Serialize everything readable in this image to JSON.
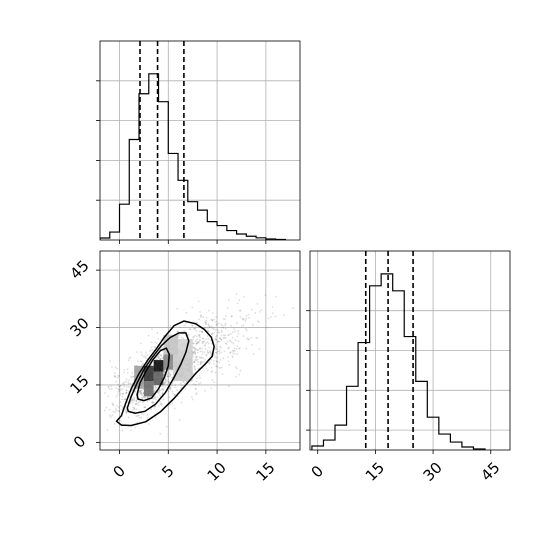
{
  "chart_data": {
    "type": "corner",
    "grid": true,
    "parameters": [
      "x",
      "y"
    ],
    "panels": [
      {
        "id": "hist_x",
        "type": "histogram",
        "xlim": [
          -2,
          18.5
        ],
        "ylim": [
          0,
          2000
        ],
        "bin_edges": [
          -2,
          -1,
          0,
          1,
          2,
          3,
          4,
          5,
          6,
          7,
          8,
          9,
          10,
          11,
          12,
          13,
          14,
          15,
          16,
          17
        ],
        "counts": [
          20,
          80,
          360,
          1010,
          1470,
          1670,
          1390,
          870,
          600,
          385,
          300,
          185,
          145,
          95,
          60,
          38,
          22,
          10,
          5
        ],
        "quantiles": [
          2.1,
          3.9,
          6.6
        ],
        "x_ticks": [
          0,
          5,
          10,
          15
        ],
        "y_ticks": [
          400,
          800,
          1200,
          1600
        ],
        "show_x_tick_labels": false,
        "show_y_tick_labels": false
      },
      {
        "id": "joint_xy",
        "type": "2d-density",
        "xlim": [
          -2,
          18.5
        ],
        "ylim": [
          -2,
          50
        ],
        "x_ticks": [
          0,
          5,
          10,
          15
        ],
        "x_tick_labels": [
          "0",
          "5",
          "10",
          "15"
        ],
        "y_ticks": [
          0,
          15,
          30,
          45
        ],
        "y_tick_labels": [
          "0",
          "15",
          "30",
          "45"
        ],
        "density_cells": [
          {
            "x": 3.5,
            "y": 18.5,
            "w": 1,
            "h": 3,
            "shade": 0.0
          },
          {
            "x": 2.5,
            "y": 16,
            "w": 1,
            "h": 4,
            "shade": 0.15
          },
          {
            "x": 3.5,
            "y": 15,
            "w": 1,
            "h": 3.5,
            "shade": 0.35
          },
          {
            "x": 2.5,
            "y": 12,
            "w": 1,
            "h": 4,
            "shade": 0.4
          },
          {
            "x": 4.5,
            "y": 19,
            "w": 1,
            "h": 4,
            "shade": 0.5
          },
          {
            "x": 1.5,
            "y": 14,
            "w": 1,
            "h": 6,
            "shade": 0.6
          },
          {
            "x": 4.5,
            "y": 23,
            "w": 1.5,
            "h": 5,
            "shade": 0.75
          },
          {
            "x": 5.5,
            "y": 16,
            "w": 2,
            "h": 8,
            "shade": 0.78
          },
          {
            "x": 6,
            "y": 22,
            "w": 1.5,
            "h": 5,
            "shade": 0.82
          }
        ],
        "contours": [
          [
            [
              -0.3,
              5.5
            ],
            [
              0.2,
              7
            ],
            [
              0.6,
              10
            ],
            [
              1.2,
              14
            ],
            [
              2,
              18
            ],
            [
              2.9,
              21.5
            ],
            [
              3.8,
              24.5
            ],
            [
              4.6,
              27.5
            ],
            [
              5.6,
              30.5
            ],
            [
              6.6,
              31.7
            ],
            [
              7.8,
              31
            ],
            [
              8.7,
              29.5
            ],
            [
              9.4,
              27.5
            ],
            [
              9.7,
              25
            ],
            [
              9.5,
              22.5
            ],
            [
              8.8,
              20.5
            ],
            [
              7.8,
              18
            ],
            [
              6.8,
              15
            ],
            [
              5.6,
              11.5
            ],
            [
              4.2,
              8
            ],
            [
              2.7,
              5.4
            ],
            [
              1.2,
              4.4
            ],
            [
              0.2,
              4.5
            ],
            [
              -0.3,
              5.5
            ]
          ],
          [
            [
              0.8,
              9
            ],
            [
              1.2,
              12
            ],
            [
              1.8,
              15.5
            ],
            [
              2.5,
              19
            ],
            [
              3.3,
              22
            ],
            [
              4.3,
              25.3
            ],
            [
              5.2,
              27.4
            ],
            [
              6.1,
              28.6
            ],
            [
              6.8,
              28.6
            ],
            [
              7.1,
              26.5
            ],
            [
              6.8,
              23.5
            ],
            [
              6.3,
              20.5
            ],
            [
              5.6,
              17
            ],
            [
              4.7,
              13
            ],
            [
              3.7,
              10
            ],
            [
              2.6,
              8.1
            ],
            [
              1.6,
              7.6
            ],
            [
              0.9,
              8.1
            ],
            [
              0.8,
              9
            ]
          ],
          [
            [
              1.8,
              12.5
            ],
            [
              2.1,
              15.5
            ],
            [
              2.7,
              18.5
            ],
            [
              3.4,
              21.5
            ],
            [
              4.2,
              24
            ],
            [
              4.8,
              24.6
            ],
            [
              5.1,
              23
            ],
            [
              5.0,
              20
            ],
            [
              4.6,
              17
            ],
            [
              4.0,
              14
            ],
            [
              3.3,
              11.6
            ],
            [
              2.5,
              10.9
            ],
            [
              1.9,
              11.3
            ],
            [
              1.8,
              12.5
            ]
          ]
        ],
        "scatter_seed": 7,
        "scatter_n": 1400
      },
      {
        "id": "hist_y",
        "type": "histogram",
        "xlim": [
          -2,
          50
        ],
        "ylim": [
          0,
          2000
        ],
        "bin_edges": [
          -1.5,
          1.5,
          4.5,
          7.5,
          10.5,
          13.5,
          16.5,
          19.5,
          22.5,
          25.5,
          28.5,
          31.5,
          34.5,
          37.5,
          40.5,
          43.5
        ],
        "counts": [
          40,
          100,
          250,
          640,
          1080,
          1650,
          1770,
          1600,
          1140,
          690,
          330,
          160,
          80,
          30,
          10
        ],
        "quantiles": [
          12.5,
          18.3,
          24.8
        ],
        "x_ticks": [
          0,
          15,
          30,
          45
        ],
        "x_tick_labels": [
          "0",
          "15",
          "30",
          "45"
        ],
        "y_ticks": [
          200,
          600,
          1000,
          1400
        ],
        "show_y_tick_labels": false
      }
    ]
  }
}
